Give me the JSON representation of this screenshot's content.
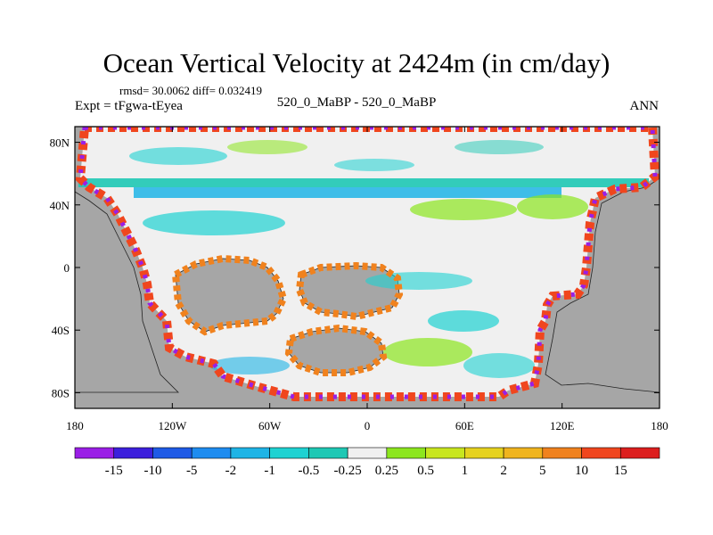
{
  "header": {
    "title": "Ocean Vertical Velocity at 2424m (in cm/day)",
    "stats": "rmsd= 30.0062 diff= 0.032419",
    "expt": "Expt = tFgwa-tEyea",
    "cases": "520_0_MaBP - 520_0_MaBP",
    "period": "ANN"
  },
  "chart_data": {
    "type": "heatmap",
    "title": "Ocean Vertical Velocity at 2424m (in cm/day)",
    "subtitle": "rmsd= 30.0062 diff= 0.032419",
    "xlabel": "",
    "ylabel": "",
    "xlim": [
      -180,
      180
    ],
    "ylim": [
      -90,
      90
    ],
    "x_ticks": [
      {
        "value": -180,
        "label": "180"
      },
      {
        "value": -120,
        "label": "120W"
      },
      {
        "value": -60,
        "label": "60W"
      },
      {
        "value": 0,
        "label": "0"
      },
      {
        "value": 60,
        "label": "60E"
      },
      {
        "value": 120,
        "label": "120E"
      },
      {
        "value": 180,
        "label": "180"
      }
    ],
    "y_ticks": [
      {
        "value": 80,
        "label": "80N"
      },
      {
        "value": 40,
        "label": "40N"
      },
      {
        "value": 0,
        "label": "0"
      },
      {
        "value": -40,
        "label": "40S"
      },
      {
        "value": -80,
        "label": "80S"
      }
    ],
    "colorbar": {
      "labels": [
        "-15",
        "-10",
        "-5",
        "-2",
        "-1",
        "-0.5",
        "-0.25",
        "0.25",
        "0.5",
        "1",
        "2",
        "5",
        "10",
        "15"
      ],
      "colors": [
        "#9a1ee6",
        "#3c1fdc",
        "#1e5ae6",
        "#1e8cf0",
        "#1eb4e6",
        "#1ed2d2",
        "#1ec8b4",
        "#f0f0f0",
        "#8ce61e",
        "#c8e61e",
        "#e6d21e",
        "#f0b41e",
        "#f0821e",
        "#f0461e",
        "#dc1e1e"
      ]
    },
    "land_color": "#a6a6a6"
  }
}
